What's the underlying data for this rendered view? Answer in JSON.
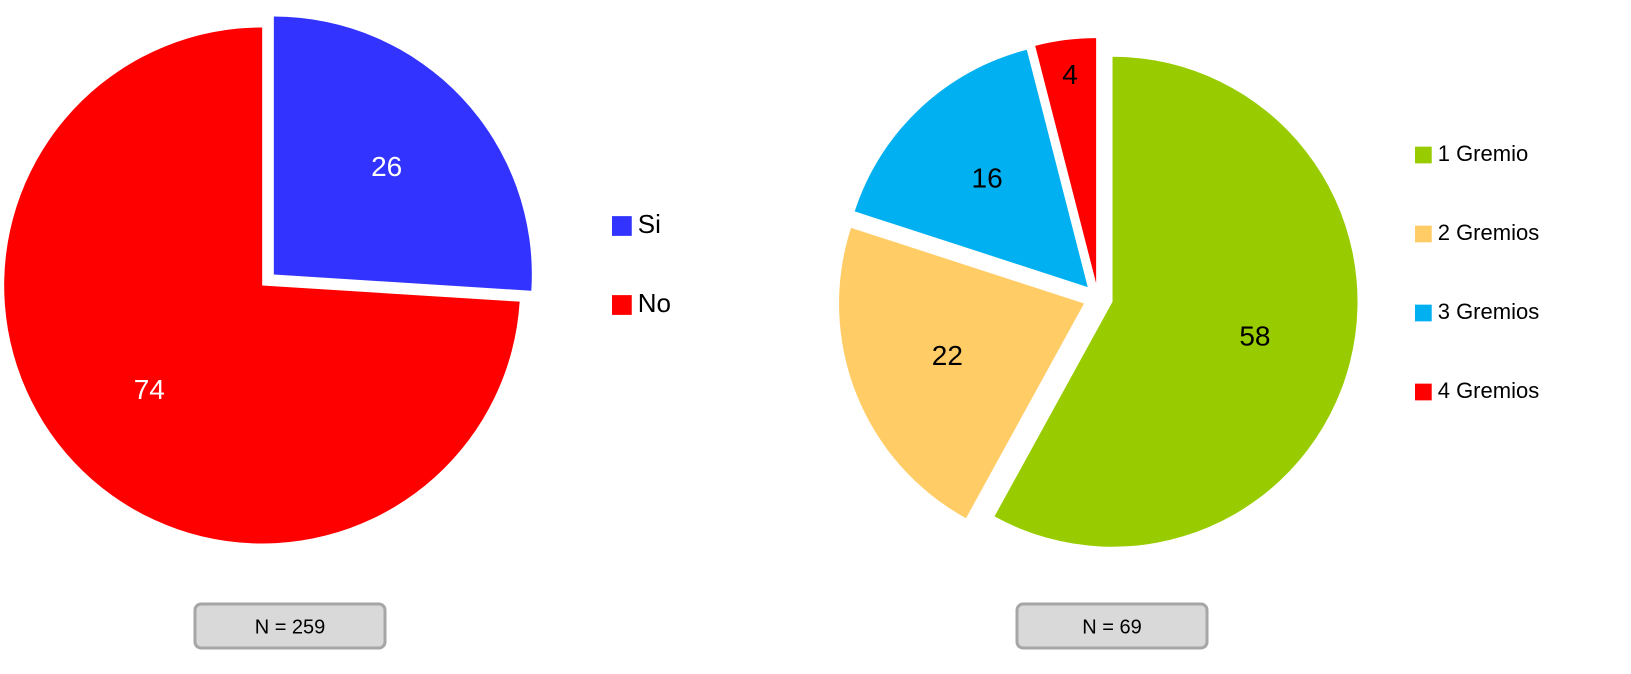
{
  "chart_data": [
    {
      "type": "pie",
      "categories": [
        "Si",
        "No"
      ],
      "values": [
        26,
        74
      ],
      "colors": [
        "#3333ff",
        "#ff0000"
      ],
      "label_color": "#ffffff",
      "annotation": "N = 259"
    },
    {
      "type": "pie",
      "categories": [
        "1 Gremio",
        "2 Gremios",
        "3 Gremios",
        "4 Gremios"
      ],
      "values": [
        58,
        22,
        16,
        4
      ],
      "colors": [
        "#99cc00",
        "#ffcc66",
        "#00b0f0",
        "#ff0000"
      ],
      "label_color": "#000000",
      "annotation": "N = 69"
    }
  ]
}
